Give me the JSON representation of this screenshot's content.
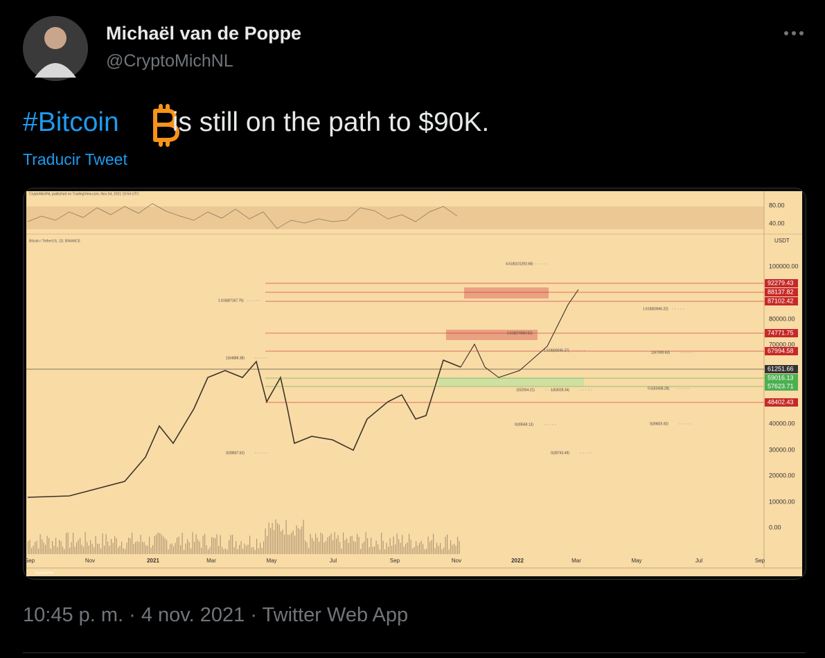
{
  "author": {
    "name": "Michaël van de Poppe",
    "handle": "@CryptoMichNL"
  },
  "tweet": {
    "hashtag": "#Bitcoin",
    "text": "is still on the path to $90K.",
    "translate": "Traducir Tweet"
  },
  "image": {
    "header": "CryptoMichNL published on TradingView.com, Nov 04, 2021 19:54 UTC",
    "symbol": "Bitcoin / TetherUS, 1D, BINANCE",
    "rsi_ticks": [
      "80.00",
      "40.00"
    ],
    "currency": "USDT",
    "price_ticks": [
      "100000.00",
      "80000.00",
      "70000.00",
      "40000.00",
      "30000.00",
      "20000.00",
      "10000.00",
      "0.00"
    ],
    "price_tags": [
      {
        "label": "92279.43",
        "kind": "red"
      },
      {
        "label": "88137.82",
        "kind": "red"
      },
      {
        "label": "87102.42",
        "kind": "red"
      },
      {
        "label": "74771.75",
        "kind": "red"
      },
      {
        "label": "67994.58",
        "kind": "red"
      },
      {
        "label": "61251.66",
        "kind": "last"
      },
      {
        "label": "59016.13",
        "kind": "green"
      },
      {
        "label": "57623.71",
        "kind": "green"
      },
      {
        "label": "48402.43",
        "kind": "red"
      }
    ],
    "time_ticks": [
      "Sep",
      "Nov",
      "2021",
      "Mar",
      "May",
      "Jul",
      "Sep",
      "Nov",
      "2022",
      "Mar",
      "May",
      "Jul",
      "Sep"
    ],
    "fib_labels": [
      "4.618(101292.68)",
      "1.618(87167.75)",
      "1.618(83940.22)",
      "2.618(74560.52)",
      "1.618(68036.37)",
      "1(64888.38)",
      "1(67090.63)",
      "1(52934.21)",
      "1(53028.34)",
      "0.5(53458.28)",
      "0(39568.13)",
      "0(39825.92)",
      "0(28837.62)",
      "0(28743.49)"
    ],
    "brand": "TradingView"
  },
  "footer": "10:45 p. m. · 4 nov. 2021 · Twitter Web App"
}
